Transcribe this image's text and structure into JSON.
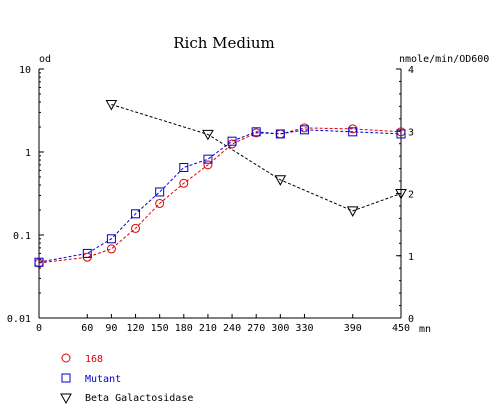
{
  "chart_data": {
    "type": "line",
    "title": "Rich Medium",
    "x_unit": "mn",
    "x_ticks": [
      0,
      60,
      90,
      120,
      150,
      180,
      210,
      240,
      270,
      300,
      330,
      390,
      450
    ],
    "xlim": [
      0,
      450
    ],
    "left_axis": {
      "label": "od",
      "scale": "log",
      "ylim": [
        0.01,
        10
      ],
      "ticks": [
        0.01,
        0.1,
        1,
        10
      ],
      "tick_labels": [
        "0.01",
        "0.1",
        "1",
        "10"
      ]
    },
    "right_axis": {
      "label": "nmole/min/OD600",
      "scale": "linear",
      "ylim": [
        0,
        4
      ],
      "ticks": [
        0,
        1,
        2,
        3,
        4
      ],
      "tick_labels": [
        "0",
        "1",
        "2",
        "3",
        "4"
      ]
    },
    "grid": false,
    "legend_position": "bottom-left",
    "series": [
      {
        "name": "168",
        "axis": "left",
        "marker": "circle",
        "color": "#dd0000",
        "x": [
          0,
          60,
          90,
          120,
          150,
          180,
          210,
          240,
          270,
          300,
          330,
          390,
          450
        ],
        "y": [
          0.046,
          0.054,
          0.068,
          0.12,
          0.24,
          0.42,
          0.7,
          1.25,
          1.7,
          1.65,
          1.95,
          1.9,
          1.75
        ]
      },
      {
        "name": "Mutant",
        "axis": "left",
        "marker": "square",
        "color": "#0000cc",
        "x": [
          0,
          60,
          90,
          120,
          150,
          180,
          210,
          240,
          270,
          300,
          330,
          390,
          450
        ],
        "y": [
          0.047,
          0.06,
          0.09,
          0.18,
          0.33,
          0.65,
          0.82,
          1.35,
          1.75,
          1.65,
          1.85,
          1.75,
          1.65
        ]
      },
      {
        "name": "Beta Galactosidase",
        "axis": "right",
        "marker": "triangle-down",
        "color": "#000000",
        "x": [
          90,
          210,
          300,
          390,
          450
        ],
        "y": [
          3.43,
          2.95,
          2.22,
          1.72,
          2.0
        ]
      }
    ]
  }
}
